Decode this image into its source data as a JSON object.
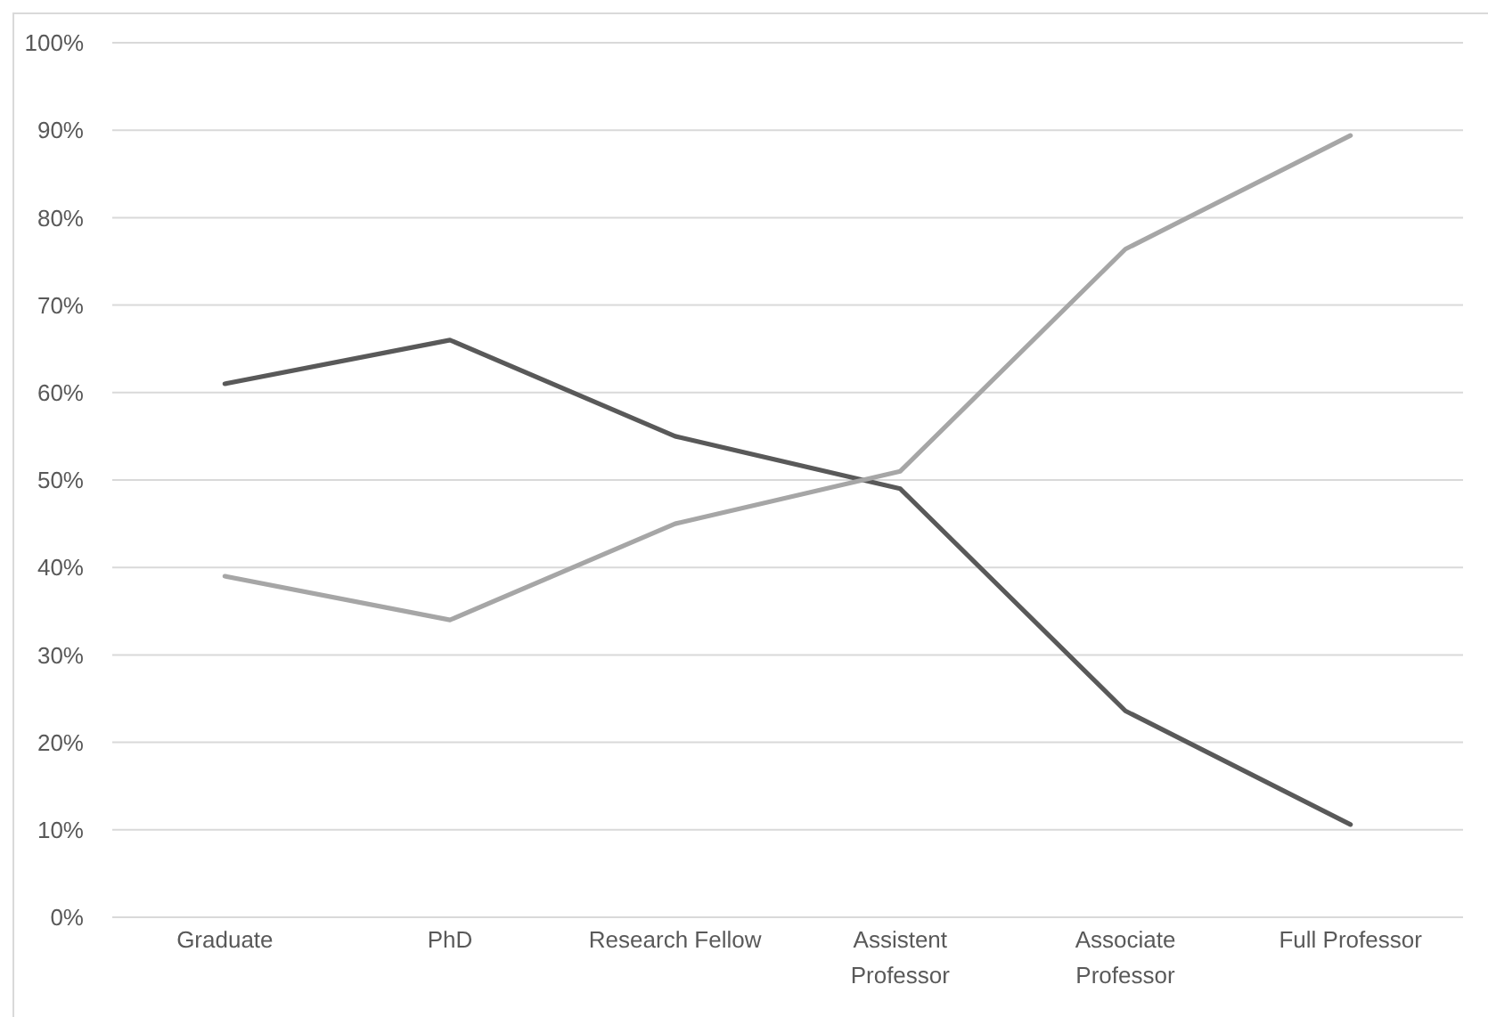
{
  "chart_data": {
    "type": "line",
    "categories": [
      "Graduate",
      "PhD",
      "Research Fellow",
      "Assistent Professor",
      "Associate Professor",
      "Full Professor"
    ],
    "series": [
      {
        "color": "#595959",
        "values": [
          61,
          66,
          55,
          49,
          23.6,
          10.6
        ]
      },
      {
        "color": "#a6a6a6",
        "values": [
          39,
          34,
          45,
          51,
          76.4,
          89.4
        ]
      }
    ],
    "ylim": [
      0,
      100
    ],
    "yticks": [
      {
        "value": 0,
        "label": "0%"
      },
      {
        "value": 10,
        "label": "10%"
      },
      {
        "value": 20,
        "label": "20%"
      },
      {
        "value": 30,
        "label": "30%"
      },
      {
        "value": 40,
        "label": "40%"
      },
      {
        "value": 50,
        "label": "50%"
      },
      {
        "value": 60,
        "label": "60%"
      },
      {
        "value": 70,
        "label": "70%"
      },
      {
        "value": 80,
        "label": "80%"
      },
      {
        "value": 90,
        "label": "90%"
      },
      {
        "value": 100,
        "label": "100%"
      }
    ],
    "grid": "y"
  }
}
